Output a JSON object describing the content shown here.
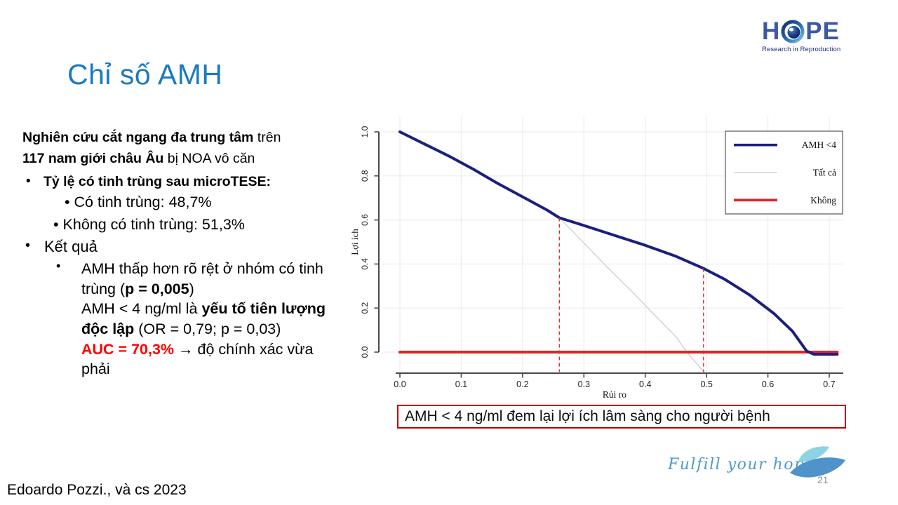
{
  "slide": {
    "title": "Chỉ số AMH",
    "page_number": "21",
    "citation": "Edoardo Pozzi., và cs 2023",
    "tagline": "Fulfill your hope",
    "conclusion": "AMH < 4 ng/ml đem lại lợi ích lâm sàng cho người bệnh"
  },
  "logo": {
    "text_h": "H",
    "text_pe": "PE",
    "subtitle": "Research in Reproduction",
    "brand_color": "#3c57a5"
  },
  "content": {
    "intro": {
      "bold1": "Nghiên cứu cắt ngang đa trung tâm",
      "reg1": " trên",
      "bold2": "117 nam giới châu Âu",
      "reg2": " bị NOA vô căn"
    },
    "bullet1": "Tỷ lệ có tinh trùng sau microTESE:",
    "sub_bullets": {
      "0": "Có tinh trùng: 48,7%",
      "1": "Không có tinh trùng: 51,3%"
    },
    "bullet2": "Kết quả",
    "result1": {
      "pre": "AMH thấp hơn rõ rệt ở nhóm có tinh trùng (",
      "bold": "p = 0,005",
      "post": ")"
    },
    "result2": {
      "pre": "AMH < 4 ng/ml là ",
      "bold": "yếu tố tiên lượng độc lập",
      "post": " (OR = 0,79; p = 0,03)"
    },
    "result3": {
      "red": "AUC = 70,3%",
      "post": " → độ chính xác vừa phải"
    }
  },
  "chart_data": {
    "type": "line",
    "title": "",
    "xlabel": "Rủi ro",
    "ylabel": "Lợi ích",
    "xlim": [
      0,
      0.72
    ],
    "ylim": [
      -0.12,
      1.02
    ],
    "xticks": [
      0.0,
      0.1,
      0.2,
      0.3,
      0.4,
      0.5,
      0.6,
      0.7
    ],
    "xtick_labels": [
      "0.0",
      "0.1",
      "0.2",
      "0.3",
      "0.4",
      "0.5",
      "0.6",
      "0.7"
    ],
    "yticks": [
      0.0,
      0.2,
      0.4,
      0.6,
      0.8,
      1.0
    ],
    "ytick_labels": [
      "0.0",
      "0.2",
      "0.4",
      "0.6",
      "0.8",
      "1.0"
    ],
    "grid": true,
    "legend_position": "top-right",
    "series": [
      {
        "name": "Tất cả",
        "color": "#d6d6d6",
        "width": 1.6,
        "points": [
          [
            0,
            1.0
          ],
          [
            0.04,
            0.945
          ],
          [
            0.08,
            0.89
          ],
          [
            0.12,
            0.83
          ],
          [
            0.16,
            0.765
          ],
          [
            0.2,
            0.705
          ],
          [
            0.24,
            0.645
          ],
          [
            0.26,
            0.61
          ],
          [
            0.3,
            0.495
          ],
          [
            0.34,
            0.38
          ],
          [
            0.38,
            0.27
          ],
          [
            0.42,
            0.155
          ],
          [
            0.45,
            0.07
          ],
          [
            0.468,
            0.0
          ],
          [
            0.483,
            -0.05
          ],
          [
            0.496,
            -0.09
          ]
        ]
      },
      {
        "name": "Không",
        "color": "#e32226",
        "width": 4,
        "points": [
          [
            0.0,
            0.0
          ],
          [
            0.713,
            0.0
          ]
        ]
      },
      {
        "name": "AMH <4",
        "color": "#1b1f7e",
        "width": 4,
        "points": [
          [
            0,
            1.0
          ],
          [
            0.04,
            0.945
          ],
          [
            0.08,
            0.89
          ],
          [
            0.12,
            0.83
          ],
          [
            0.16,
            0.765
          ],
          [
            0.2,
            0.705
          ],
          [
            0.24,
            0.645
          ],
          [
            0.26,
            0.61
          ],
          [
            0.3,
            0.575
          ],
          [
            0.35,
            0.53
          ],
          [
            0.4,
            0.485
          ],
          [
            0.45,
            0.435
          ],
          [
            0.495,
            0.38
          ],
          [
            0.53,
            0.33
          ],
          [
            0.57,
            0.26
          ],
          [
            0.61,
            0.175
          ],
          [
            0.64,
            0.095
          ],
          [
            0.663,
            0.005
          ],
          [
            0.675,
            -0.01
          ],
          [
            0.713,
            -0.01
          ]
        ]
      }
    ],
    "legend_order": [
      "AMH <4",
      "Tất cả",
      "Không"
    ],
    "reference_lines": [
      {
        "x": 0.26,
        "y_top": 0.61,
        "y_bottom": -0.09,
        "style": "dashed",
        "color": "#dd2f2f"
      },
      {
        "x": 0.495,
        "y_top": 0.38,
        "y_bottom": -0.09,
        "style": "dashed",
        "color": "#dd2f2f"
      }
    ]
  }
}
